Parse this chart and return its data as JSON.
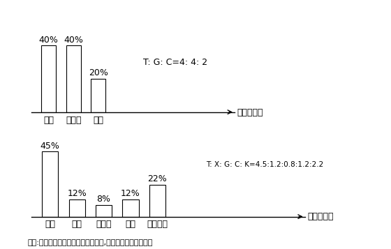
{
  "chart1": {
    "categories": [
      "电气",
      "给排水",
      "采暖"
    ],
    "values": [
      40,
      40,
      20
    ],
    "label_text": "T: G: C=4: 4: 2",
    "right_label": "（住宅楼）"
  },
  "chart2": {
    "categories": [
      "电气",
      "消防",
      "给排水",
      "采暖",
      "空调通风"
    ],
    "values": [
      45,
      12,
      8,
      12,
      22
    ],
    "label_text": "T: X: G: C: K=4.5:1.2:0.8:1.2:2.2",
    "right_label": "（综合楼）"
  },
  "note": "（注:实际分布比例应根据工程量计算,以上仅为举例形式。）",
  "bar_color": "#ffffff",
  "bar_edgecolor": "#000000",
  "bg_color": "#ffffff",
  "font_size": 9,
  "bar_width": 0.6
}
